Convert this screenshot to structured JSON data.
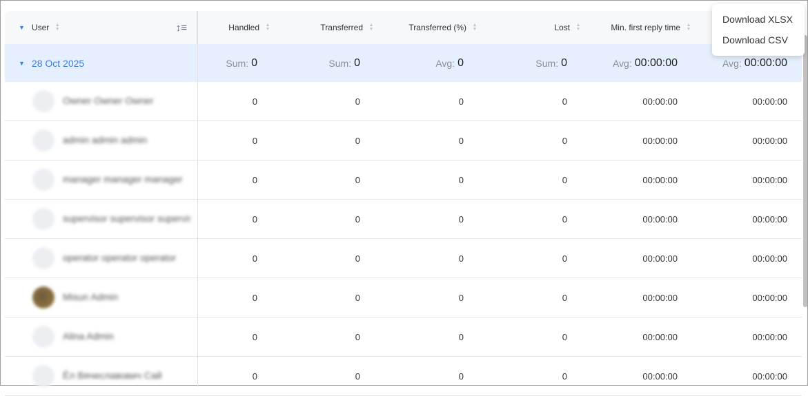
{
  "columns": {
    "user": "User",
    "handled": "Handled",
    "transferred": "Transferred",
    "transferred_pct": "Transferred (%)",
    "lost": "Lost",
    "min_first_reply": "Min. first reply time"
  },
  "group": {
    "label": "28 Oct 2025",
    "handled": {
      "label": "Sum:",
      "value": "0"
    },
    "transferred": {
      "label": "Sum:",
      "value": "0"
    },
    "transferred_pct": {
      "label": "Avg:",
      "value": "0"
    },
    "lost": {
      "label": "Sum:",
      "value": "0"
    },
    "min_first_reply": {
      "label": "Avg:",
      "value": "00:00:00"
    },
    "last": {
      "label": "Avg:",
      "value": "00:00:00"
    }
  },
  "rows": [
    {
      "name": "Owner Owner Owner",
      "handled": "0",
      "transferred": "0",
      "pct": "0",
      "lost": "0",
      "min": "00:00:00",
      "last": "00:00:00"
    },
    {
      "name": "admin admin admin",
      "handled": "0",
      "transferred": "0",
      "pct": "0",
      "lost": "0",
      "min": "00:00:00",
      "last": "00:00:00"
    },
    {
      "name": "manager manager manager",
      "handled": "0",
      "transferred": "0",
      "pct": "0",
      "lost": "0",
      "min": "00:00:00",
      "last": "00:00:00"
    },
    {
      "name": "supervisor supervisor supervisor",
      "handled": "0",
      "transferred": "0",
      "pct": "0",
      "lost": "0",
      "min": "00:00:00",
      "last": "00:00:00"
    },
    {
      "name": "operator operator operator",
      "handled": "0",
      "transferred": "0",
      "pct": "0",
      "lost": "0",
      "min": "00:00:00",
      "last": "00:00:00"
    },
    {
      "name": "Misun Admin",
      "handled": "0",
      "transferred": "0",
      "pct": "0",
      "lost": "0",
      "min": "00:00:00",
      "last": "00:00:00",
      "photo": true
    },
    {
      "name": "Alina Admin",
      "handled": "0",
      "transferred": "0",
      "pct": "0",
      "lost": "0",
      "min": "00:00:00",
      "last": "00:00:00"
    },
    {
      "name": "Ёл Вячеславович Сай",
      "handled": "0",
      "transferred": "0",
      "pct": "0",
      "lost": "0",
      "min": "00:00:00",
      "last": "00:00:00"
    }
  ],
  "menu": {
    "items": [
      "Download XLSX",
      "Download CSV"
    ]
  }
}
